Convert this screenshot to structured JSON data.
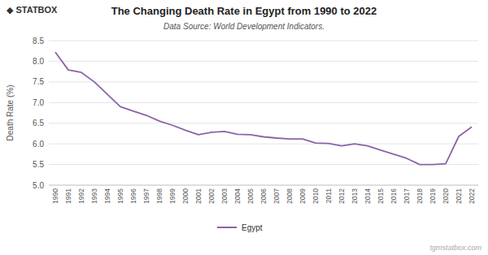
{
  "chart_data": {
    "type": "line",
    "title": "The Changing Death Rate in Egypt from 1990 to 2022",
    "subtitle": "Data Source: World Development Indicators.",
    "ylabel": "Death Rate (%)",
    "annotations": [
      "◆ STATBOX",
      "tgmstatbox.com"
    ],
    "x": [
      1990,
      1991,
      1992,
      1993,
      1994,
      1995,
      1996,
      1997,
      1998,
      1999,
      2000,
      2001,
      2002,
      2003,
      2004,
      2005,
      2006,
      2007,
      2008,
      2009,
      2010,
      2011,
      2012,
      2013,
      2014,
      2015,
      2016,
      2017,
      2018,
      2019,
      2020,
      2021,
      2022
    ],
    "series": [
      {
        "name": "Egypt",
        "color": "#8B64A8",
        "values": [
          8.22,
          7.79,
          7.73,
          7.5,
          7.2,
          6.9,
          6.79,
          6.69,
          6.55,
          6.45,
          6.33,
          6.22,
          6.28,
          6.3,
          6.23,
          6.22,
          6.17,
          6.14,
          6.12,
          6.12,
          6.02,
          6.01,
          5.95,
          6.0,
          5.95,
          5.85,
          5.75,
          5.65,
          5.5,
          5.5,
          5.52,
          6.18,
          6.41
        ]
      }
    ],
    "xlim": [
      1989.5,
      2022.5
    ],
    "xticks": [
      1990,
      1991,
      1992,
      1993,
      1994,
      1995,
      1996,
      1997,
      1998,
      1999,
      2000,
      2001,
      2002,
      2003,
      2004,
      2005,
      2006,
      2007,
      2008,
      2009,
      2010,
      2011,
      2012,
      2013,
      2014,
      2015,
      2016,
      2017,
      2018,
      2019,
      2020,
      2021,
      2022
    ],
    "ylim": [
      5.0,
      8.5
    ],
    "yticks": [
      {
        "value": 5,
        "label": "5.0"
      },
      5.5,
      {
        "value": 6,
        "label": "6.0"
      },
      6.5,
      {
        "value": 7,
        "label": "7.0"
      },
      7.5,
      {
        "value": 8,
        "label": "8.0"
      },
      8.5
    ],
    "grid": true,
    "legend": "bottom"
  }
}
